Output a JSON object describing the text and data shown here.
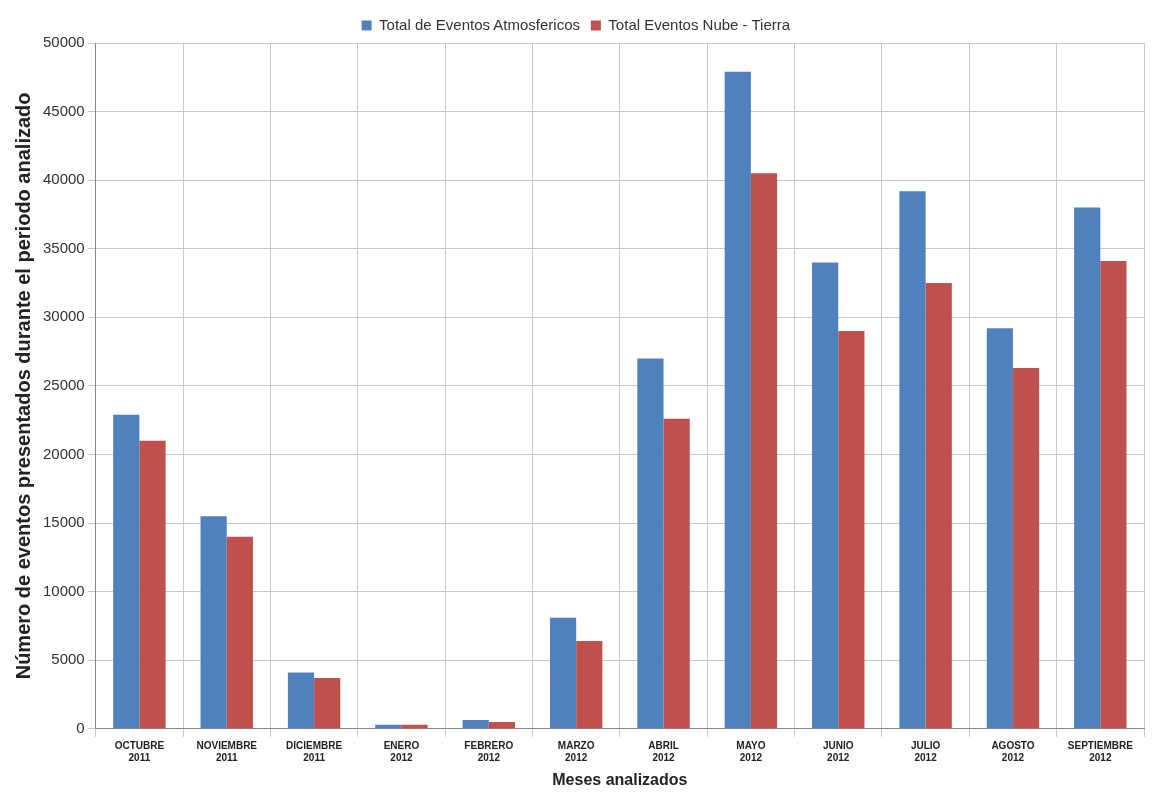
{
  "chart_data": {
    "type": "bar",
    "xlabel": "Meses analizados",
    "ylabel": "Número de eventos presentados durante el periodo analizado",
    "categories": [
      "OCTUBRE 2011",
      "NOVIEMBRE 2011",
      "DICIEMBRE 2011",
      "ENERO 2012",
      "FEBRERO 2012",
      "MARZO 2012",
      "ABRIL 2012",
      "MAYO 2012",
      "JUNIO 2012",
      "JULIO 2012",
      "AGOSTO 2012",
      "SEPTIEMBRE 2012"
    ],
    "series": [
      {
        "name": "Total de Eventos Atmosfericos",
        "color": "#4f81bd",
        "values": [
          22900,
          15500,
          4100,
          300,
          650,
          8100,
          27000,
          47900,
          34000,
          39200,
          29200,
          38000
        ]
      },
      {
        "name": "Total Eventos Nube - Tierra",
        "color": "#c0504d",
        "values": [
          21000,
          14000,
          3700,
          300,
          500,
          6400,
          22600,
          40500,
          29000,
          32500,
          26300,
          34100
        ]
      }
    ],
    "ylim": [
      0,
      50000
    ],
    "yticks": [
      0,
      5000,
      10000,
      15000,
      20000,
      25000,
      30000,
      35000,
      40000,
      45000,
      50000
    ],
    "grid": true,
    "legend": "top"
  }
}
